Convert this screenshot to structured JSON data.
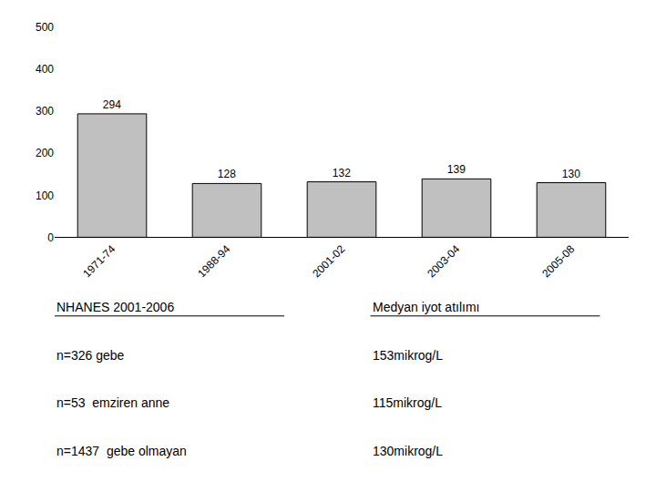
{
  "chart_data": {
    "type": "bar",
    "categories": [
      "1971-74",
      "1988-94",
      "2001-02",
      "2003-04",
      "2005-08"
    ],
    "values": [
      294,
      128,
      132,
      139,
      130
    ],
    "color": "#c0c0c0",
    "ylim": [
      0,
      500
    ],
    "yticks": [
      0,
      100,
      200,
      300,
      400,
      500
    ],
    "grid": false,
    "data_labels": true,
    "annotations": [
      [
        "NHANES 2001-2006",
        "Medyan iyot atılımı"
      ],
      [
        "n=326 gebe",
        "153mikrog/L"
      ],
      [
        "n=53  emziren anne",
        "115mikrog/L"
      ],
      [
        "n=1437  gebe olmayan",
        "130mikrog/L"
      ]
    ]
  }
}
